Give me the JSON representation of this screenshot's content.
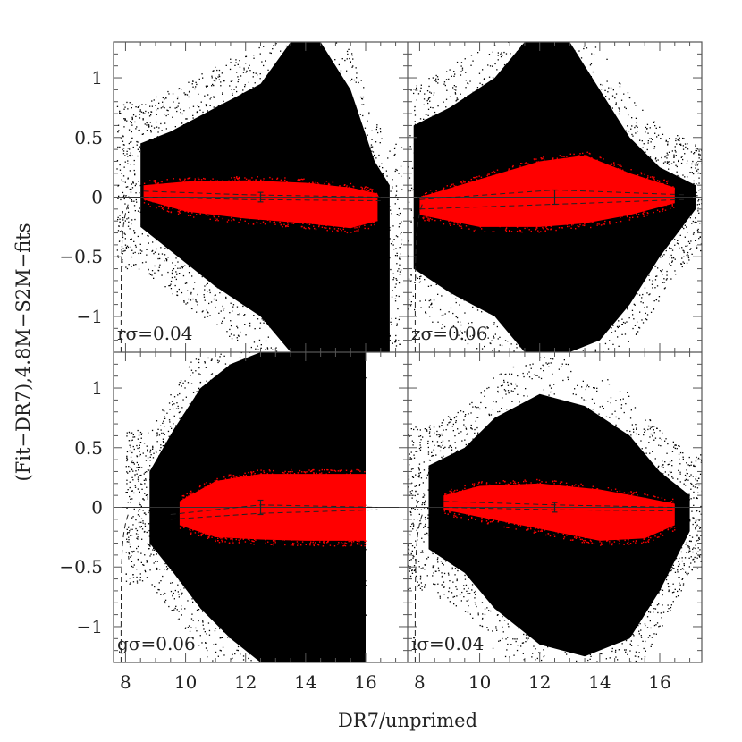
{
  "chart_data": {
    "type": "scatter",
    "xlabel": "DR7/unprimed",
    "ylabel": "(Fit−DR7),4.8M−S2M−fits",
    "xlim": [
      7.6,
      17.4
    ],
    "ylim": [
      -1.3,
      1.3
    ],
    "xticks": [
      8,
      10,
      12,
      14,
      16
    ],
    "yticks": [
      -1,
      -0.5,
      0,
      0.5,
      1
    ],
    "ytick_labels": [
      "−1",
      "−0.5",
      "0",
      "0.5",
      "1"
    ],
    "colors": {
      "all_points": "#000000",
      "selected_points": "#ff0000",
      "frame": "#555555"
    },
    "panels": [
      {
        "label": "rσ=0.04",
        "black_density": {
          "start": 8.5,
          "peak": 13.8,
          "end": 16.8,
          "profile": [
            [
              8.5,
              0.45,
              -0.25
            ],
            [
              9.5,
              0.55,
              -0.45
            ],
            [
              11,
              0.75,
              -0.75
            ],
            [
              12.5,
              0.95,
              -1.0
            ],
            [
              13.5,
              1.3,
              -1.3
            ],
            [
              14.5,
              1.3,
              -1.3
            ],
            [
              15.5,
              0.9,
              -1.3
            ],
            [
              16.3,
              0.3,
              -1.3
            ],
            [
              16.8,
              0.1,
              -1.3
            ]
          ]
        },
        "red_band": [
          [
            8.6,
            0.1,
            -0.02
          ],
          [
            10,
            0.13,
            -0.12
          ],
          [
            12,
            0.14,
            -0.18
          ],
          [
            14,
            0.12,
            -0.22
          ],
          [
            15.5,
            0.08,
            -0.26
          ],
          [
            16.4,
            0.03,
            -0.2
          ]
        ],
        "dashed_upper": [
          [
            8.6,
            0.05
          ],
          [
            12,
            0.02
          ],
          [
            16.5,
            0.0
          ]
        ],
        "dashed_lower": [
          [
            8.6,
            0.0
          ],
          [
            12,
            -0.02
          ],
          [
            16.5,
            -0.03
          ]
        ],
        "error_bar": {
          "x": 12.5,
          "y": 0.0,
          "err": 0.04
        }
      },
      {
        "label": "zσ=0.06",
        "black_density": {
          "start": 7.8,
          "peak": 12.2,
          "end": 17.2,
          "profile": [
            [
              7.8,
              0.6,
              -0.6
            ],
            [
              9,
              0.75,
              -0.8
            ],
            [
              10.5,
              1.0,
              -1.0
            ],
            [
              11.5,
              1.3,
              -1.3
            ],
            [
              13,
              1.3,
              -1.3
            ],
            [
              14,
              0.9,
              -1.2
            ],
            [
              15,
              0.5,
              -0.9
            ],
            [
              16,
              0.25,
              -0.5
            ],
            [
              17.2,
              0.1,
              -0.1
            ]
          ]
        },
        "red_band": [
          [
            8.0,
            0.0,
            -0.15
          ],
          [
            10,
            0.15,
            -0.25
          ],
          [
            12,
            0.3,
            -0.25
          ],
          [
            13.5,
            0.35,
            -0.22
          ],
          [
            15,
            0.2,
            -0.15
          ],
          [
            16.5,
            0.08,
            -0.05
          ]
        ],
        "dashed_upper": [
          [
            8.0,
            -0.02
          ],
          [
            12.5,
            0.06
          ],
          [
            16.8,
            0.02
          ]
        ],
        "dashed_lower": [
          [
            8.0,
            -0.1
          ],
          [
            12.5,
            -0.06
          ],
          [
            16.8,
            -0.02
          ]
        ],
        "error_bar": {
          "x": 12.5,
          "y": 0.0,
          "err": 0.06
        }
      },
      {
        "label": "gσ=0.06",
        "black_density": {
          "start": 8.8,
          "peak": 14.0,
          "end": 16.0,
          "profile": [
            [
              8.8,
              0.3,
              -0.3
            ],
            [
              9.6,
              0.65,
              -0.55
            ],
            [
              10.5,
              1.0,
              -0.85
            ],
            [
              11.5,
              1.2,
              -1.1
            ],
            [
              12.5,
              1.3,
              -1.3
            ],
            [
              16.0,
              1.3,
              -1.3
            ]
          ]
        },
        "red_band": [
          [
            9.8,
            0.05,
            -0.15
          ],
          [
            11,
            0.22,
            -0.25
          ],
          [
            12.5,
            0.28,
            -0.27
          ],
          [
            14,
            0.28,
            -0.28
          ],
          [
            16.0,
            0.28,
            -0.28
          ]
        ],
        "dashed_upper": [
          [
            9.5,
            -0.06
          ],
          [
            12.5,
            0.02
          ],
          [
            16.4,
            0.0
          ]
        ],
        "dashed_lower": [
          [
            9.5,
            -0.1
          ],
          [
            12.5,
            -0.05
          ],
          [
            16.4,
            -0.02
          ]
        ],
        "error_bar": {
          "x": 12.5,
          "y": 0.0,
          "err": 0.06
        },
        "clip_xmax": 16.0
      },
      {
        "label": "iσ=0.04",
        "black_density": {
          "start": 8.3,
          "peak": 12.0,
          "end": 17.0,
          "profile": [
            [
              8.3,
              0.35,
              -0.35
            ],
            [
              9.5,
              0.5,
              -0.55
            ],
            [
              10.5,
              0.75,
              -0.85
            ],
            [
              12,
              0.95,
              -1.15
            ],
            [
              13.5,
              0.85,
              -1.25
            ],
            [
              15,
              0.6,
              -1.1
            ],
            [
              16,
              0.3,
              -0.7
            ],
            [
              17,
              0.1,
              -0.2
            ]
          ]
        },
        "red_band": [
          [
            8.8,
            0.1,
            -0.02
          ],
          [
            10,
            0.18,
            -0.08
          ],
          [
            12,
            0.2,
            -0.18
          ],
          [
            14,
            0.15,
            -0.28
          ],
          [
            15.5,
            0.08,
            -0.26
          ],
          [
            16.5,
            0.03,
            -0.15
          ]
        ],
        "dashed_upper": [
          [
            8.8,
            0.05
          ],
          [
            12.5,
            0.02
          ],
          [
            16.5,
            0.0
          ]
        ],
        "dashed_lower": [
          [
            8.8,
            0.0
          ],
          [
            12.5,
            -0.02
          ],
          [
            16.5,
            -0.03
          ]
        ],
        "error_bar": {
          "x": 12.5,
          "y": 0.0,
          "err": 0.04
        }
      }
    ]
  }
}
